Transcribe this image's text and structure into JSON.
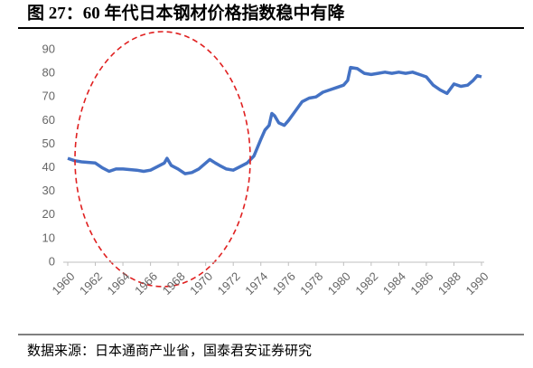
{
  "chart_data": {
    "type": "line",
    "title": "图 27：60 年代日本钢材价格指数稳中有降",
    "source": "数据来源：日本通商产业省，国泰君安证券研究",
    "x": [
      1960,
      1960.5,
      1961,
      1962,
      1962.5,
      1963,
      1963.5,
      1964,
      1965,
      1965.5,
      1966,
      1966.5,
      1967,
      1967.2,
      1967.5,
      1968,
      1968.5,
      1969,
      1969.5,
      1970,
      1970.3,
      1970.7,
      1971,
      1971.5,
      1972,
      1972.5,
      1973,
      1973.5,
      1974,
      1974.3,
      1974.6,
      1974.8,
      1975,
      1975.3,
      1975.7,
      1976,
      1976.5,
      1977,
      1977.5,
      1978,
      1978.5,
      1979,
      1979.5,
      1980,
      1980.3,
      1980.5,
      1981,
      1981.5,
      1982,
      1982.5,
      1983,
      1983.5,
      1984,
      1984.5,
      1985,
      1985.5,
      1986,
      1986.5,
      1987,
      1987.5,
      1988,
      1988.5,
      1989,
      1989.4,
      1989.7,
      1990
    ],
    "series": [
      {
        "color": "#4472c4",
        "values": [
          44,
          43,
          42.5,
          42,
          40,
          38.5,
          39.5,
          39.5,
          39,
          38.5,
          39,
          40.5,
          42,
          44,
          41,
          39.5,
          37.5,
          38,
          39.5,
          42,
          43.5,
          42,
          41,
          39.5,
          39,
          40.5,
          42,
          45,
          52,
          56,
          58,
          63,
          62,
          59,
          58,
          60,
          64,
          68,
          69.5,
          70,
          72,
          73,
          74,
          75,
          77,
          82.5,
          82,
          80,
          79.5,
          80,
          80.5,
          80,
          80.5,
          80,
          80.5,
          79.5,
          78.5,
          75,
          73,
          71.5,
          75.5,
          74.5,
          75,
          77,
          79,
          78.5
        ]
      }
    ],
    "xlim": [
      1960,
      1990
    ],
    "xticks": [
      1960,
      1962,
      1964,
      1966,
      1968,
      1970,
      1972,
      1974,
      1976,
      1978,
      1980,
      1982,
      1984,
      1986,
      1988,
      1990
    ],
    "ylim": [
      0,
      90
    ],
    "yticks": [
      0,
      10,
      20,
      30,
      40,
      50,
      60,
      70,
      80,
      90
    ],
    "grid": false
  }
}
